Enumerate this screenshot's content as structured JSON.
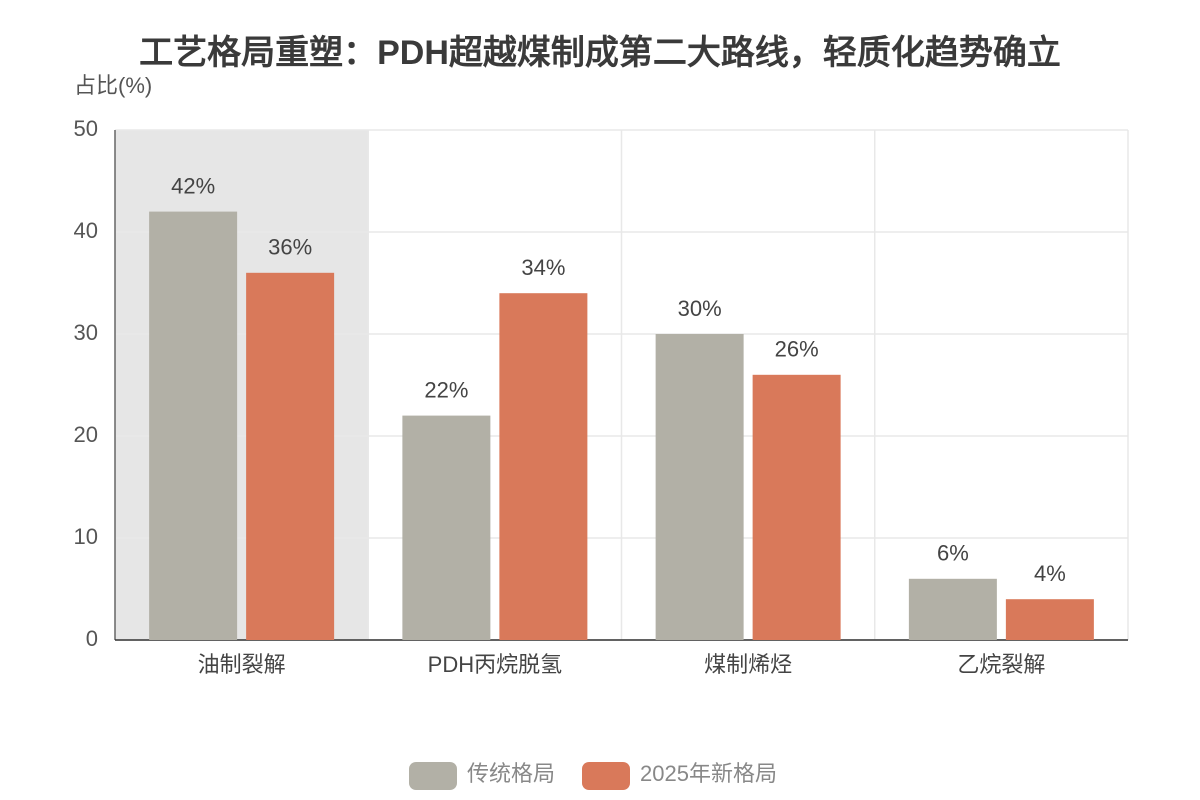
{
  "chart_data": {
    "type": "bar",
    "title": "工艺格局重塑：PDH超越煤制成第二大路线，轻质化趋势确立",
    "y_label": "占比(%)",
    "categories": [
      "油制裂解",
      "PDH丙烷脱氢",
      "煤制烯烃",
      "乙烷裂解"
    ],
    "series": [
      {
        "name": "传统格局",
        "color": "#b2b0a6",
        "values": [
          42,
          22,
          30,
          6
        ],
        "value_labels": [
          "42%",
          "22%",
          "30%",
          "6%"
        ]
      },
      {
        "name": "2025年新格局",
        "color": "#d9795a",
        "values": [
          36,
          34,
          26,
          4
        ],
        "value_labels": [
          "36%",
          "34%",
          "26%",
          "4%"
        ]
      }
    ],
    "ylim": [
      0,
      50
    ],
    "yticks": [
      0,
      10,
      20,
      30,
      40,
      50
    ],
    "grid": true,
    "legend": "bottom"
  }
}
